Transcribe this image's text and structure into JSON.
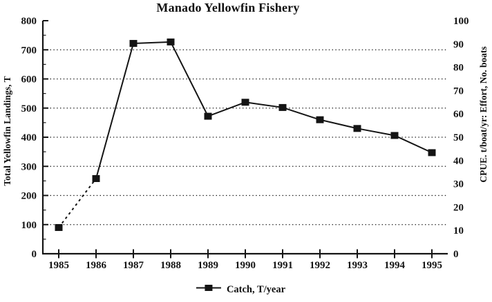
{
  "page": {
    "background": "#ffffff",
    "ink": "#141414"
  },
  "chart_data": {
    "type": "line",
    "title": "Manado Yellowfin Fishery",
    "x": [
      1985,
      1986,
      1987,
      1988,
      1989,
      1990,
      1991,
      1992,
      1993,
      1994,
      1995
    ],
    "series": [
      {
        "name": "Catch, T/year",
        "values": [
          90,
          258,
          722,
          727,
          472,
          520,
          502,
          460,
          430,
          406,
          347
        ],
        "color": "#141414",
        "marker": "filled-square",
        "first_segment_dashed": true
      }
    ],
    "xlabel": "",
    "ylabel_left": "Total Yellowfin Landings, T",
    "ylabel_right": "CPUE. t/boat/yr: Effort, No. boats",
    "ylim_left": [
      0,
      800
    ],
    "ylim_right": [
      0,
      100
    ],
    "yticks_left": [
      0,
      100,
      200,
      300,
      400,
      500,
      600,
      700,
      800
    ],
    "yticks_right": [
      0,
      10,
      20,
      30,
      40,
      50,
      60,
      70,
      80,
      90,
      100
    ],
    "gridlines": {
      "orientation": "horizontal",
      "style": "dotted",
      "at_left_axis_values": [
        100,
        200,
        300,
        400,
        500,
        600,
        700
      ]
    },
    "legend": {
      "label": "Catch, T/year",
      "marker": "filled-square-on-line",
      "position": "bottom-center"
    }
  }
}
